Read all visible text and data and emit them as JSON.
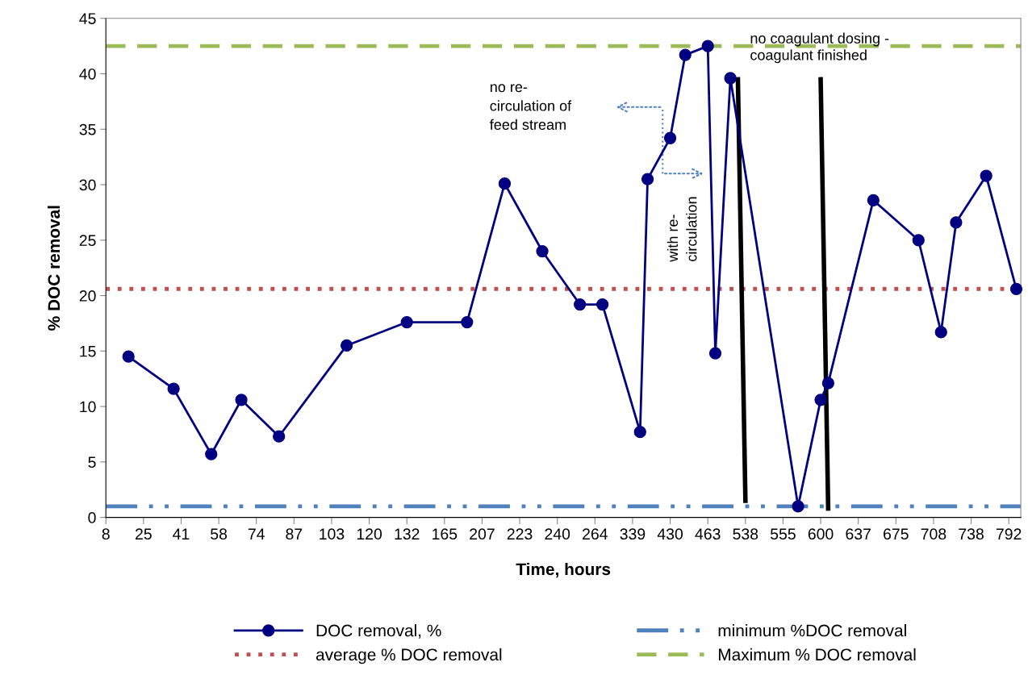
{
  "chart_data": {
    "type": "line",
    "xlabel": "Time, hours",
    "ylabel": "% DOC removal",
    "categories": [
      "8",
      null,
      null,
      null,
      null,
      "25",
      null,
      null,
      null,
      null,
      "41",
      null,
      null,
      null,
      null,
      "58",
      null,
      null,
      null,
      null,
      "74",
      null,
      null,
      null,
      null,
      "87",
      null,
      null,
      null,
      null,
      "103",
      null,
      null,
      null,
      null,
      "120",
      null,
      null,
      null,
      null,
      "132",
      null,
      null,
      null,
      null,
      "165",
      null,
      null,
      null,
      null,
      "207",
      null,
      null,
      null,
      null,
      "223",
      null,
      null,
      null,
      null,
      "240",
      null,
      null,
      null,
      null,
      "264",
      null,
      null,
      null,
      null,
      "339",
      null,
      null,
      null,
      null,
      "430",
      null,
      null,
      null,
      null,
      "463",
      null,
      null,
      null,
      null,
      "538",
      null,
      null,
      null,
      null,
      "555",
      null,
      null,
      null,
      null,
      "600",
      null,
      null,
      null,
      null,
      "637",
      null,
      null,
      null,
      null,
      "675",
      null,
      null,
      null,
      null,
      "708",
      null,
      null,
      null,
      null,
      "738",
      null,
      null,
      null,
      null,
      "792",
      null
    ],
    "ylim": [
      0,
      45
    ],
    "yticks": [
      0,
      5,
      10,
      15,
      20,
      25,
      30,
      35,
      40,
      45
    ],
    "series": [
      {
        "name": "DOC removal, %",
        "color": "#000080",
        "marker": "circle",
        "line_style": "solid",
        "values": [
          null,
          null,
          null,
          14.5,
          null,
          null,
          null,
          null,
          null,
          11.6,
          null,
          null,
          null,
          null,
          5.7,
          null,
          null,
          null,
          10.6,
          null,
          null,
          null,
          null,
          7.3,
          null,
          null,
          null,
          null,
          null,
          null,
          null,
          null,
          15.5,
          null,
          null,
          null,
          null,
          null,
          null,
          null,
          17.6,
          null,
          null,
          null,
          null,
          null,
          null,
          null,
          17.6,
          null,
          null,
          null,
          null,
          30.1,
          null,
          null,
          null,
          null,
          24.0,
          null,
          null,
          null,
          null,
          19.2,
          null,
          null,
          19.2,
          null,
          null,
          null,
          null,
          7.7,
          30.5,
          null,
          null,
          34.2,
          null,
          41.7,
          null,
          null,
          42.5,
          14.8,
          null,
          39.6,
          null,
          null,
          null,
          null,
          null,
          null,
          null,
          null,
          1.0,
          null,
          null,
          10.6,
          12.1,
          null,
          null,
          null,
          null,
          null,
          28.6,
          null,
          null,
          null,
          null,
          null,
          25.0,
          null,
          null,
          16.7,
          null,
          26.6,
          null,
          null,
          null,
          30.8,
          null,
          null,
          null,
          20.6
        ]
      },
      {
        "color": "#000000",
        "marker": "none",
        "line_style": "solid",
        "values": [
          null,
          null,
          null,
          null,
          null,
          null,
          null,
          null,
          null,
          null,
          null,
          null,
          null,
          null,
          null,
          null,
          null,
          null,
          null,
          null,
          null,
          null,
          null,
          null,
          null,
          null,
          null,
          null,
          null,
          null,
          null,
          null,
          null,
          null,
          null,
          null,
          null,
          null,
          null,
          null,
          null,
          null,
          null,
          null,
          null,
          null,
          null,
          null,
          null,
          null,
          null,
          null,
          null,
          null,
          null,
          null,
          null,
          null,
          null,
          null,
          null,
          null,
          null,
          null,
          null,
          null,
          null,
          null,
          null,
          null,
          null,
          null,
          null,
          null,
          null,
          null,
          null,
          null,
          null,
          null,
          null,
          null,
          null,
          null,
          39.5,
          1.5,
          null,
          null,
          null,
          null,
          null,
          null,
          null,
          null,
          null,
          null,
          null,
          null,
          null,
          null,
          null,
          null,
          null,
          null,
          null,
          null,
          null,
          null,
          null,
          null,
          null,
          null,
          null,
          null,
          null,
          null,
          null,
          null,
          null,
          null,
          null,
          null
        ]
      },
      {
        "color": "#000000",
        "marker": "none",
        "line_style": "solid",
        "values": [
          null,
          null,
          null,
          null,
          null,
          null,
          null,
          null,
          null,
          null,
          null,
          null,
          null,
          null,
          null,
          null,
          null,
          null,
          null,
          null,
          null,
          null,
          null,
          null,
          null,
          null,
          null,
          null,
          null,
          null,
          null,
          null,
          null,
          null,
          null,
          null,
          null,
          null,
          null,
          null,
          null,
          null,
          null,
          null,
          null,
          null,
          null,
          null,
          null,
          null,
          null,
          null,
          null,
          null,
          null,
          null,
          null,
          null,
          null,
          null,
          null,
          null,
          null,
          null,
          null,
          null,
          null,
          null,
          null,
          null,
          null,
          null,
          null,
          null,
          null,
          null,
          null,
          null,
          null,
          null,
          null,
          null,
          null,
          null,
          null,
          null,
          null,
          null,
          null,
          null,
          null,
          null,
          null,
          null,
          null,
          39.5,
          0.8,
          null,
          null,
          null,
          null,
          null,
          null,
          null,
          null,
          null,
          null,
          null,
          null,
          null,
          null,
          null,
          null,
          null,
          null,
          null,
          null,
          null,
          null,
          null,
          null,
          null
        ]
      }
    ],
    "ref_lines": [
      {
        "axis": "y",
        "value": 20.6,
        "label": "average % DOC removal",
        "color": "#c0504d",
        "line_style": "dotted"
      },
      {
        "axis": "y",
        "value": 1.0,
        "label": "minimum %DOC removal",
        "color": "#4f81bd",
        "line_style": "dashdotdot"
      },
      {
        "axis": "y",
        "value": 42.5,
        "label": "Maximum % DOC removal",
        "color": "#9bbb59",
        "line_style": "dashed"
      }
    ],
    "annotations": [
      "no re-\ncirculation of\nfeed stream",
      "with re-\ncirculation",
      "no coagulant dosing -\ncoagulant finished"
    ],
    "grid": false,
    "legend": "bottom"
  }
}
